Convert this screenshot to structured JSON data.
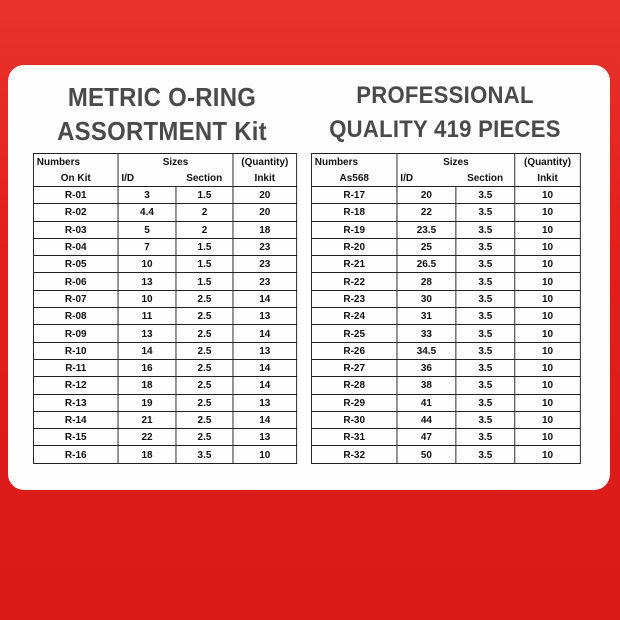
{
  "colors": {
    "background": "#e21f1c",
    "label": "#fdfdfd",
    "title": "#4a4a4a"
  },
  "left": {
    "title_line1": "METRIC O-RING",
    "title_line2": "ASSORTMENT Kit",
    "headers": {
      "numbers": "Numbers",
      "numbers_sub": "On Kit",
      "sizes": "Sizes",
      "id": "I/D",
      "section": "Section",
      "quantity": "(Quantity)",
      "quantity_sub": "Inkit"
    },
    "rows": [
      [
        "R-01",
        "3",
        "1.5",
        "20"
      ],
      [
        "R-02",
        "4.4",
        "2",
        "20"
      ],
      [
        "R-03",
        "5",
        "2",
        "18"
      ],
      [
        "R-04",
        "7",
        "1.5",
        "23"
      ],
      [
        "R-05",
        "10",
        "1.5",
        "23"
      ],
      [
        "R-06",
        "13",
        "1.5",
        "23"
      ],
      [
        "R-07",
        "10",
        "2.5",
        "14"
      ],
      [
        "R-08",
        "11",
        "2.5",
        "13"
      ],
      [
        "R-09",
        "13",
        "2.5",
        "14"
      ],
      [
        "R-10",
        "14",
        "2.5",
        "13"
      ],
      [
        "R-11",
        "16",
        "2.5",
        "14"
      ],
      [
        "R-12",
        "18",
        "2.5",
        "14"
      ],
      [
        "R-13",
        "19",
        "2.5",
        "13"
      ],
      [
        "R-14",
        "21",
        "2.5",
        "14"
      ],
      [
        "R-15",
        "22",
        "2.5",
        "13"
      ],
      [
        "R-16",
        "18",
        "3.5",
        "10"
      ]
    ]
  },
  "right": {
    "title_line1": "PROFESSIONAL",
    "title_line2": "QUALITY 419 PIECES",
    "headers": {
      "numbers": "Numbers",
      "numbers_sub": "As568",
      "sizes": "Sizes",
      "id": "I/D",
      "section": "Section",
      "quantity": "(Quantity)",
      "quantity_sub": "Inkit"
    },
    "rows": [
      [
        "R-17",
        "20",
        "3.5",
        "10"
      ],
      [
        "R-18",
        "22",
        "3.5",
        "10"
      ],
      [
        "R-19",
        "23.5",
        "3.5",
        "10"
      ],
      [
        "R-20",
        "25",
        "3.5",
        "10"
      ],
      [
        "R-21",
        "26.5",
        "3.5",
        "10"
      ],
      [
        "R-22",
        "28",
        "3.5",
        "10"
      ],
      [
        "R-23",
        "30",
        "3.5",
        "10"
      ],
      [
        "R-24",
        "31",
        "3.5",
        "10"
      ],
      [
        "R-25",
        "33",
        "3.5",
        "10"
      ],
      [
        "R-26",
        "34.5",
        "3.5",
        "10"
      ],
      [
        "R-27",
        "36",
        "3.5",
        "10"
      ],
      [
        "R-28",
        "38",
        "3.5",
        "10"
      ],
      [
        "R-29",
        "41",
        "3.5",
        "10"
      ],
      [
        "R-30",
        "44",
        "3.5",
        "10"
      ],
      [
        "R-31",
        "47",
        "3.5",
        "10"
      ],
      [
        "R-32",
        "50",
        "3.5",
        "10"
      ]
    ]
  }
}
